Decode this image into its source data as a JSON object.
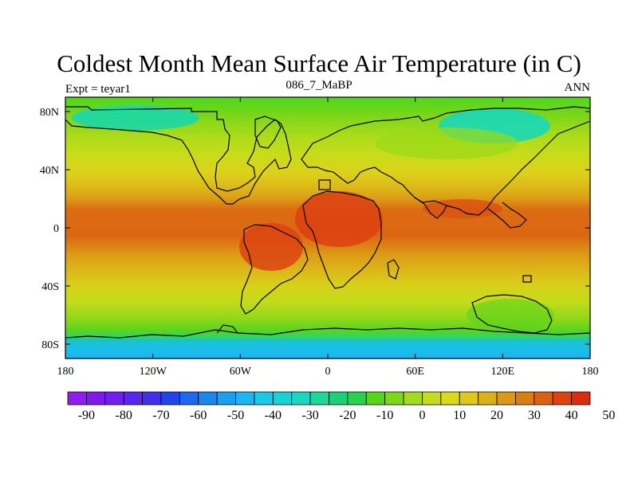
{
  "title": "Coldest Month Mean Surface Air Temperature (in C)",
  "left_label": "Expt = teyar1",
  "center_label": "086_7_MaBP",
  "right_label": "ANN",
  "map": {
    "y_tick_labels": [
      "80N",
      "40N",
      "0",
      "40S",
      "80S"
    ],
    "x_tick_labels": [
      "180",
      "120W",
      "60W",
      "0",
      "60E",
      "120E",
      "180"
    ]
  },
  "colorbar": {
    "labels": [
      "-90",
      "-80",
      "-70",
      "-60",
      "-50",
      "-40",
      "-30",
      "-20",
      "-10",
      "0",
      "10",
      "20",
      "30",
      "40",
      "50"
    ],
    "colors": [
      "#8f1cf0",
      "#8019ee",
      "#701fef",
      "#5a26ef",
      "#4230ee",
      "#2244ee",
      "#1e67ef",
      "#1a86ee",
      "#1aa0f0",
      "#1cb6f0",
      "#1ac8e8",
      "#1ad2d6",
      "#1ad8bf",
      "#1ad99a",
      "#1ad276",
      "#2ad050",
      "#58d41a",
      "#7ed81a",
      "#a4dc1a",
      "#c4dc1a",
      "#d8da1a",
      "#e0c81a",
      "#dcb018",
      "#dc9816",
      "#dc7c14",
      "#dc6010",
      "#dc4410",
      "#dc2c0e"
    ]
  }
}
